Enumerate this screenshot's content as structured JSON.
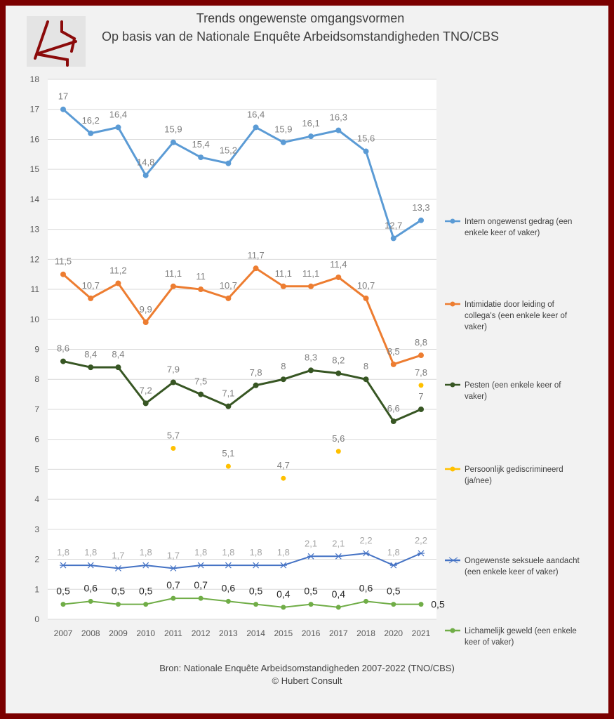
{
  "title_line1": "Trends ongewenste omgangsvormen",
  "title_line2": "Op basis van de Nationale Enquête Arbeidsomstandigheden TNO/CBS",
  "footer_line1": "Bron: Nationale Enquête Arbeidsomstandigheden 2007-2022 (TNO/CBS)",
  "footer_line2": "© Hubert Consult",
  "chart_data": {
    "type": "line",
    "categories": [
      "2007",
      "2008",
      "2009",
      "2010",
      "2011",
      "2012",
      "2013",
      "2014",
      "2015",
      "2016",
      "2017",
      "2018",
      "2020",
      "2021"
    ],
    "ylim": [
      0,
      18
    ],
    "yticks": [
      0,
      1,
      2,
      3,
      4,
      5,
      6,
      7,
      8,
      9,
      10,
      11,
      12,
      13,
      14,
      15,
      16,
      17,
      18
    ],
    "grid": true,
    "legend_position": "right",
    "series": [
      {
        "name": "Intern ongewenst gedrag (een enkele keer of vaker)",
        "color": "#5b9bd5",
        "marker": "circle",
        "width": 3,
        "labelColor": "#7f7f7f",
        "values": [
          17,
          16.2,
          16.4,
          14.8,
          15.9,
          15.4,
          15.2,
          16.4,
          15.9,
          16.1,
          16.3,
          15.6,
          12.7,
          13.3
        ]
      },
      {
        "name": "Intimidatie door leiding of collega's (een enkele keer of vaker)",
        "color": "#ed7d31",
        "marker": "circle",
        "width": 3,
        "labelColor": "#7f7f7f",
        "values": [
          11.5,
          10.7,
          11.2,
          9.9,
          11.1,
          11,
          10.7,
          11.7,
          11.1,
          11.1,
          11.4,
          10.7,
          8.5,
          8.8
        ]
      },
      {
        "name": "Pesten (een enkele keer of vaker)",
        "color": "#375623",
        "marker": "circle",
        "width": 3,
        "labelColor": "#7f7f7f",
        "values": [
          8.6,
          8.4,
          8.4,
          7.2,
          7.9,
          7.5,
          7.1,
          7.8,
          8,
          8.3,
          8.2,
          8,
          6.6,
          7
        ]
      },
      {
        "name": "Persoonlijk gediscrimineerd (ja/nee)",
        "color": "#ffc000",
        "marker": "circle",
        "width": 0,
        "labelColor": "#7f7f7f",
        "values": [
          null,
          null,
          null,
          null,
          5.7,
          null,
          5.1,
          null,
          4.7,
          null,
          5.6,
          null,
          null,
          7.8
        ]
      },
      {
        "name": "Ongewenste seksuele aandacht (een enkele keer of vaker)",
        "color": "#4472c4",
        "marker": "star",
        "width": 2,
        "labelColor": "#a6a6a6",
        "values": [
          1.8,
          1.8,
          1.7,
          1.8,
          1.7,
          1.8,
          1.8,
          1.8,
          1.8,
          2.1,
          2.1,
          2.2,
          1.8,
          2.2
        ]
      },
      {
        "name": "Lichamelijk geweld (een enkele keer of vaker)",
        "color": "#70ad47",
        "marker": "circle",
        "width": 2,
        "labelColor": "#262626",
        "values": [
          0.5,
          0.6,
          0.5,
          0.5,
          0.7,
          0.7,
          0.6,
          0.5,
          0.4,
          0.5,
          0.4,
          0.6,
          0.5,
          0.5
        ]
      }
    ]
  }
}
